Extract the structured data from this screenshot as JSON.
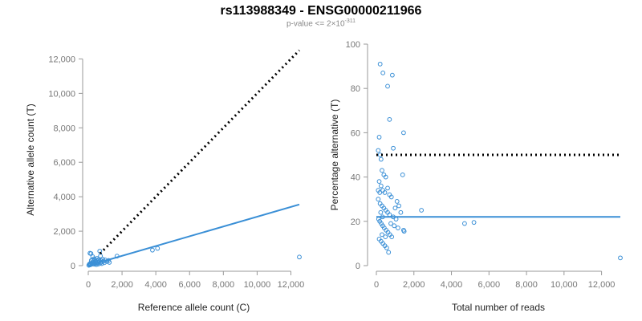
{
  "header": {
    "title": "rs113988349 - ENSG00000211966",
    "subtitle_prefix": "p-value <= 2×10",
    "subtitle_exp": "-311"
  },
  "colors": {
    "points": "#3a8fd6",
    "fit": "#3a8fd6",
    "reference": "#000000"
  },
  "chart_data": [
    {
      "type": "scatter",
      "xlabel": "Reference allele count (C)",
      "ylabel": "Alternative allele count (T)",
      "xlim": [
        0,
        12500
      ],
      "ylim": [
        0,
        12300
      ],
      "xticks": [
        0,
        2000,
        4000,
        6000,
        8000,
        10000,
        12000
      ],
      "xtick_labels": [
        "0",
        "2,000",
        "4,000",
        "6,000",
        "8,000",
        "10,000",
        "12,000"
      ],
      "yticks": [
        0,
        2000,
        4000,
        6000,
        8000,
        10000,
        12000
      ],
      "ytick_labels": [
        "0",
        "2,000",
        "4,000",
        "6,000",
        "8,000",
        "10,000",
        "12,000"
      ],
      "grid": false,
      "points": [
        [
          30,
          20
        ],
        [
          60,
          80
        ],
        [
          90,
          40
        ],
        [
          120,
          130
        ],
        [
          150,
          60
        ],
        [
          180,
          300
        ],
        [
          200,
          150
        ],
        [
          230,
          90
        ],
        [
          260,
          520
        ],
        [
          280,
          200
        ],
        [
          300,
          110
        ],
        [
          330,
          260
        ],
        [
          360,
          80
        ],
        [
          380,
          180
        ],
        [
          400,
          340
        ],
        [
          420,
          120
        ],
        [
          450,
          230
        ],
        [
          480,
          60
        ],
        [
          500,
          150
        ],
        [
          520,
          420
        ],
        [
          550,
          280
        ],
        [
          580,
          190
        ],
        [
          600,
          90
        ],
        [
          620,
          350
        ],
        [
          650,
          240
        ],
        [
          680,
          840
        ],
        [
          700,
          150
        ],
        [
          720,
          560
        ],
        [
          750,
          300
        ],
        [
          780,
          210
        ],
        [
          800,
          120
        ],
        [
          850,
          380
        ],
        [
          900,
          260
        ],
        [
          950,
          170
        ],
        [
          1000,
          330
        ],
        [
          1100,
          240
        ],
        [
          1200,
          300
        ],
        [
          1250,
          190
        ],
        [
          1700,
          550
        ],
        [
          3800,
          900
        ],
        [
          4100,
          1000
        ],
        [
          12500,
          500
        ],
        [
          100,
          720
        ],
        [
          350,
          400
        ],
        [
          160,
          700
        ],
        [
          250,
          350
        ]
      ],
      "fit_line": {
        "x": [
          0,
          12500
        ],
        "y": [
          0,
          3550
        ]
      },
      "reference_line": {
        "x": [
          700,
          12500
        ],
        "y": [
          700,
          12500
        ],
        "style": "dotted"
      }
    },
    {
      "type": "scatter",
      "xlabel": "Total number of reads",
      "ylabel": "Percentage alternative (T)",
      "xlim": [
        0,
        13000
      ],
      "ylim": [
        0,
        100
      ],
      "xticks": [
        0,
        2000,
        4000,
        6000,
        8000,
        10000,
        12000
      ],
      "xtick_labels": [
        "0",
        "2,000",
        "4,000",
        "6,000",
        "8,000",
        "10,000",
        "12,000"
      ],
      "yticks": [
        0,
        20,
        40,
        60,
        80,
        100
      ],
      "ytick_labels": [
        "0",
        "20",
        "40",
        "60",
        "80",
        "100"
      ],
      "grid": false,
      "points": [
        [
          200,
          91
        ],
        [
          350,
          87
        ],
        [
          600,
          81
        ],
        [
          850,
          86
        ],
        [
          700,
          66
        ],
        [
          150,
          58
        ],
        [
          1450,
          60
        ],
        [
          100,
          52
        ],
        [
          900,
          53
        ],
        [
          200,
          50
        ],
        [
          250,
          48
        ],
        [
          300,
          43
        ],
        [
          400,
          41
        ],
        [
          500,
          40
        ],
        [
          1400,
          41
        ],
        [
          150,
          38
        ],
        [
          250,
          36
        ],
        [
          350,
          34
        ],
        [
          450,
          33
        ],
        [
          600,
          35
        ],
        [
          700,
          32
        ],
        [
          800,
          31
        ],
        [
          100,
          30
        ],
        [
          200,
          28
        ],
        [
          300,
          27
        ],
        [
          400,
          26
        ],
        [
          500,
          25
        ],
        [
          600,
          24
        ],
        [
          700,
          23
        ],
        [
          900,
          22
        ],
        [
          1000,
          26
        ],
        [
          1100,
          29
        ],
        [
          1200,
          27
        ],
        [
          1300,
          24
        ],
        [
          120,
          21
        ],
        [
          180,
          20
        ],
        [
          260,
          19
        ],
        [
          340,
          18
        ],
        [
          420,
          17
        ],
        [
          520,
          16
        ],
        [
          620,
          15
        ],
        [
          720,
          14
        ],
        [
          820,
          13
        ],
        [
          150,
          12
        ],
        [
          250,
          11
        ],
        [
          350,
          10
        ],
        [
          450,
          9
        ],
        [
          550,
          8
        ],
        [
          650,
          6
        ],
        [
          1450,
          16
        ],
        [
          1480,
          15.5
        ],
        [
          2400,
          25
        ],
        [
          4700,
          19
        ],
        [
          5200,
          19.5
        ],
        [
          13000,
          3.5
        ],
        [
          100,
          34
        ],
        [
          180,
          33
        ],
        [
          230,
          24
        ],
        [
          330,
          22
        ],
        [
          1050,
          21
        ],
        [
          770,
          19
        ],
        [
          950,
          18
        ],
        [
          1150,
          17
        ],
        [
          300,
          14
        ],
        [
          480,
          13
        ]
      ],
      "fit_line": {
        "x": [
          0,
          13000
        ],
        "y": [
          22,
          22
        ]
      },
      "reference_line": {
        "x": [
          0,
          13000
        ],
        "y": [
          50,
          50
        ],
        "style": "dotted"
      }
    }
  ]
}
